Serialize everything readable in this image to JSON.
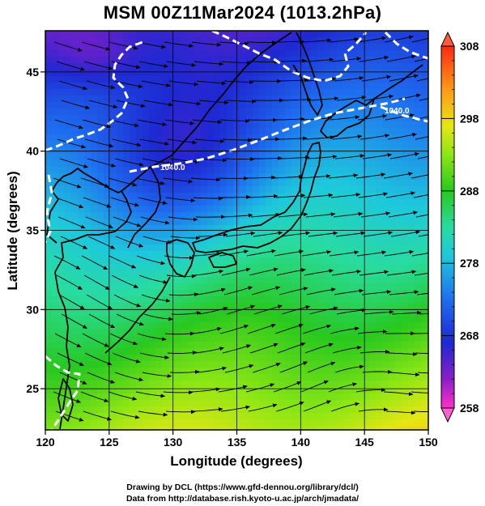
{
  "title": "MSM 00Z11Mar2024 (1013.2hPa)",
  "footer": {
    "line1": "Drawing by DCL (https://www.gfd-dennou.org/library/dcl/)",
    "line2": "Data from http://database.rish.kyoto-u.ac.jp/arch/jmadata/"
  },
  "contour_label": "1040.0",
  "chart_data": {
    "type": "heatmap",
    "title": "MSM 00Z11Mar2024 (1013.2hPa)",
    "xlabel": "Longitude (degrees)",
    "ylabel": "Latitude  (degrees)",
    "xlim": [
      120,
      150
    ],
    "ylim": [
      22.4,
      47.6
    ],
    "xticks": [
      "120",
      "125",
      "130",
      "135",
      "140",
      "145",
      "150"
    ],
    "yticks": [
      "25",
      "30",
      "35",
      "40",
      "45"
    ],
    "grid": true,
    "colorbar": {
      "range": [
        258,
        308
      ],
      "ticks": [
        "258",
        "268",
        "278",
        "288",
        "298",
        "308"
      ]
    }
  }
}
